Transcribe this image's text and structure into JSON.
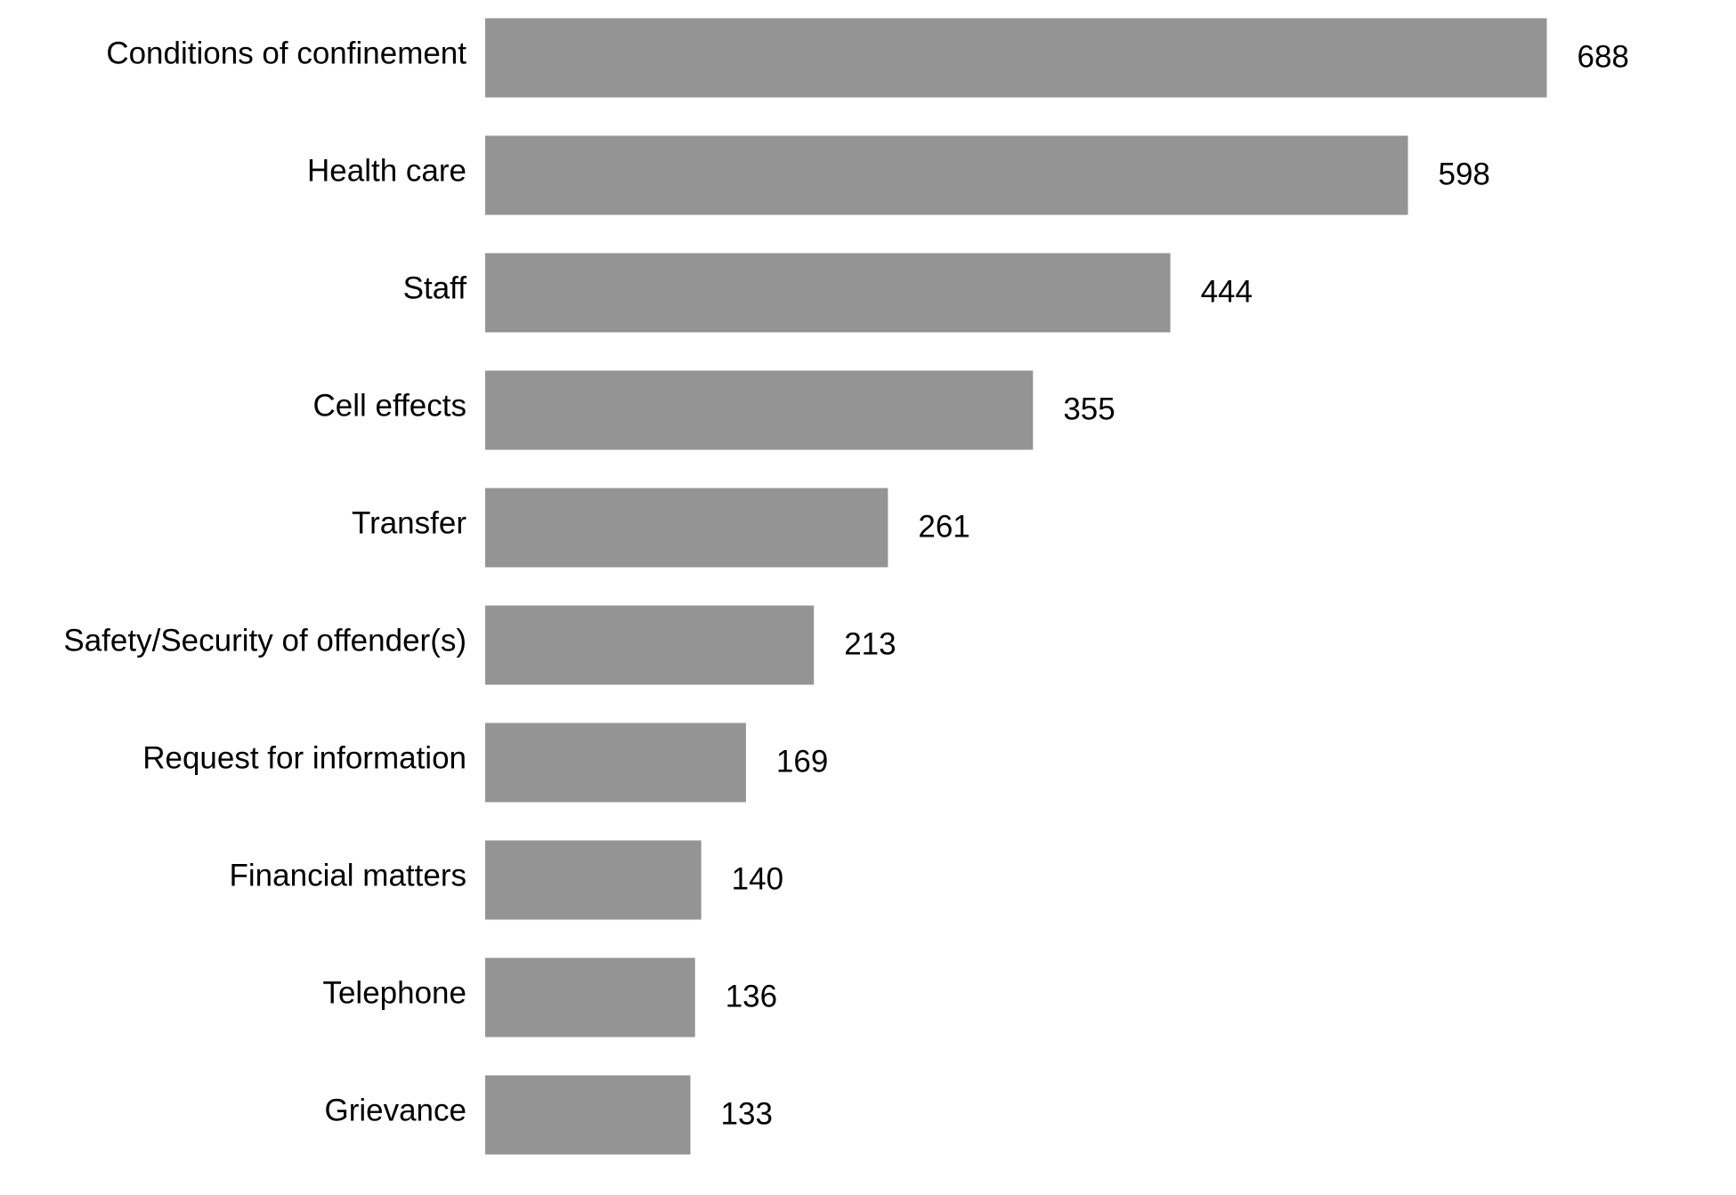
{
  "chart_data": {
    "type": "bar",
    "orientation": "horizontal",
    "categories": [
      "Conditions of confinement",
      "Health care",
      "Staff",
      "Cell effects",
      "Transfer",
      "Safety/Security of offender(s)",
      "Request for information",
      "Financial matters",
      "Telephone",
      "Grievance"
    ],
    "values": [
      688,
      598,
      444,
      355,
      261,
      213,
      169,
      140,
      136,
      133
    ],
    "color": "#959494"
  }
}
